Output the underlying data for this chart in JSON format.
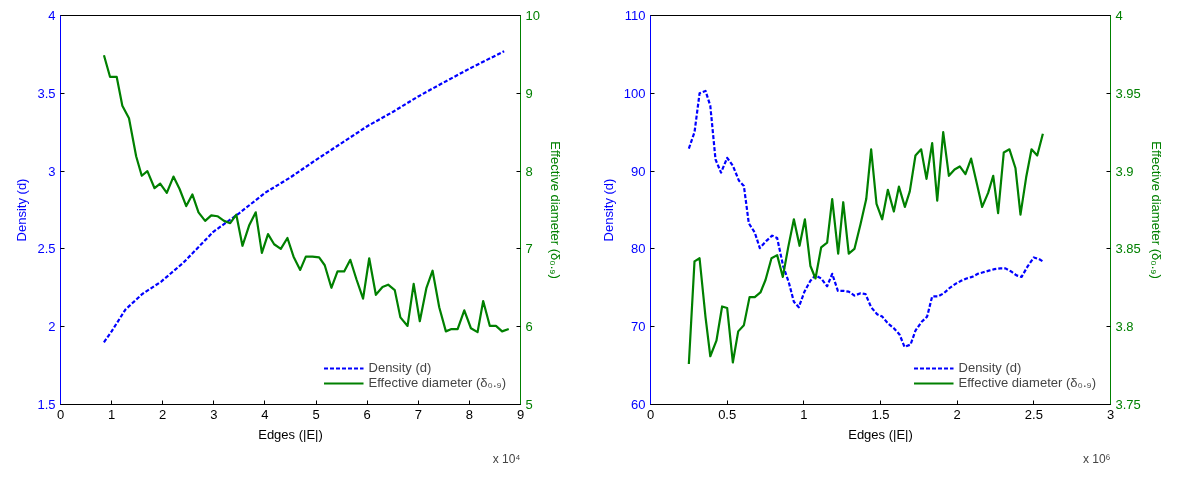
{
  "chart_data": [
    {
      "type": "line",
      "xlabel": "Edges (|E|)",
      "ylabel": "Density (d)",
      "y2label": "Effective diameter (δ₀.₉)",
      "annotations": [
        "x 10⁴"
      ],
      "xlim": [
        0,
        9
      ],
      "xticks": [
        0,
        1,
        2,
        3,
        4,
        5,
        6,
        7,
        8,
        9
      ],
      "ylim": [
        1.5,
        4
      ],
      "yticks": [
        1.5,
        2,
        2.5,
        3,
        3.5,
        4
      ],
      "y2lim": [
        5,
        10
      ],
      "y2ticks": [
        5,
        6,
        7,
        8,
        9,
        10
      ],
      "grid": false,
      "legend": "bottom right",
      "series": [
        {
          "name": "Density (d)",
          "color": "#0000ff",
          "line_style": "dashed",
          "x": [
            0.85,
            1.0,
            1.27,
            1.6,
            1.97,
            2.4,
            2.99,
            3.5,
            4.0,
            4.5,
            4.99,
            5.5,
            6.01,
            6.5,
            7.0,
            7.5,
            8.01,
            8.68
          ],
          "values": [
            1.9,
            1.97,
            2.11,
            2.21,
            2.29,
            2.41,
            2.61,
            2.73,
            2.86,
            2.96,
            3.07,
            3.18,
            3.29,
            3.38,
            3.48,
            3.57,
            3.66,
            3.77
          ]
        },
        {
          "name": "Effective diameter (δ₀.₉)",
          "color": "#008000",
          "axis": "y2",
          "line_style": "solid",
          "x": [
            0.85,
            0.97,
            1.1,
            1.21,
            1.34,
            1.48,
            1.59,
            1.7,
            1.84,
            1.95,
            2.08,
            2.21,
            2.33,
            2.46,
            2.58,
            2.7,
            2.83,
            2.95,
            3.07,
            3.2,
            3.32,
            3.44,
            3.56,
            3.69,
            3.82,
            3.94,
            4.06,
            4.18,
            4.31,
            4.44,
            4.56,
            4.69,
            4.8,
            4.93,
            5.06,
            5.17,
            5.3,
            5.42,
            5.55,
            5.67,
            5.79,
            5.92,
            6.04,
            6.17,
            6.3,
            6.41,
            6.54,
            6.65,
            6.79,
            6.91,
            7.03,
            7.16,
            7.28,
            7.41,
            7.54,
            7.65,
            7.77,
            7.9,
            8.03,
            8.16,
            8.27,
            8.4,
            8.52,
            8.64,
            8.77
          ],
          "values": [
            9.49,
            9.21,
            9.21,
            8.84,
            8.68,
            8.19,
            7.94,
            8.0,
            7.78,
            7.84,
            7.72,
            7.93,
            7.77,
            7.55,
            7.7,
            7.47,
            7.36,
            7.43,
            7.42,
            7.36,
            7.33,
            7.44,
            7.04,
            7.3,
            7.47,
            6.95,
            7.19,
            7.06,
            7.0,
            7.14,
            6.9,
            6.73,
            6.9,
            6.9,
            6.89,
            6.79,
            6.5,
            6.71,
            6.71,
            6.86,
            6.61,
            6.36,
            6.88,
            6.41,
            6.51,
            6.54,
            6.47,
            6.12,
            6.01,
            6.55,
            6.07,
            6.5,
            6.72,
            6.25,
            5.94,
            5.97,
            5.97,
            6.21,
            5.98,
            5.93,
            6.33,
            6.01,
            6.01,
            5.94,
            5.97
          ]
        }
      ]
    },
    {
      "type": "line",
      "xlabel": "Edges (|E|)",
      "ylabel": "Density (d)",
      "y2label": "Effective diameter (δ₀.₉)",
      "annotations": [
        "x 10⁶"
      ],
      "xlim": [
        0,
        3
      ],
      "xticks": [
        0,
        0.5,
        1,
        1.5,
        2,
        2.5,
        3
      ],
      "ylim": [
        60,
        110
      ],
      "yticks": [
        60,
        70,
        80,
        90,
        100,
        110
      ],
      "y2lim": [
        3.75,
        4
      ],
      "y2ticks": [
        3.75,
        3.8,
        3.85,
        3.9,
        3.95,
        4
      ],
      "grid": false,
      "legend": "bottom right",
      "series": [
        {
          "name": "Density (d)",
          "color": "#0000ff",
          "line_style": "dashed",
          "x": [
            0.25,
            0.287,
            0.32,
            0.359,
            0.39,
            0.424,
            0.46,
            0.5,
            0.537,
            0.576,
            0.609,
            0.641,
            0.68,
            0.713,
            0.754,
            0.793,
            0.826,
            0.865,
            0.902,
            0.935,
            0.967,
            1.004,
            1.043,
            1.076,
            1.113,
            1.152,
            1.185,
            1.222,
            1.26,
            1.293,
            1.33,
            1.37,
            1.402,
            1.439,
            1.478,
            1.511,
            1.55,
            1.587,
            1.624,
            1.657,
            1.696,
            1.728,
            1.767,
            1.804,
            1.837,
            1.876,
            1.913,
            1.952,
            1.989,
            2.026,
            2.061,
            2.098,
            2.135,
            2.17,
            2.207,
            2.243,
            2.283,
            2.315,
            2.352,
            2.387,
            2.42,
            2.461,
            2.5,
            2.533,
            2.559
          ],
          "values": [
            92.9,
            95.0,
            100.0,
            100.3,
            98.4,
            91.5,
            89.8,
            91.7,
            90.7,
            88.8,
            88.1,
            83.3,
            82.1,
            80.1,
            81.0,
            81.7,
            81.4,
            77.8,
            75.7,
            73.2,
            72.5,
            74.5,
            75.9,
            76.6,
            76.2,
            75.2,
            76.8,
            74.6,
            74.6,
            74.5,
            74.0,
            74.3,
            74.2,
            72.5,
            71.6,
            71.3,
            70.4,
            69.8,
            69.0,
            67.4,
            67.7,
            69.5,
            70.6,
            71.3,
            73.9,
            73.9,
            74.3,
            75.0,
            75.5,
            75.9,
            76.2,
            76.4,
            76.8,
            77.0,
            77.2,
            77.4,
            77.5,
            77.5,
            77.1,
            76.6,
            76.4,
            77.8,
            78.9,
            78.7,
            78.4
          ]
        },
        {
          "name": "Effective diameter (δ₀.₉)",
          "color": "#008000",
          "axis": "y2",
          "line_style": "solid",
          "x": [
            0.25,
            0.287,
            0.32,
            0.359,
            0.39,
            0.43,
            0.467,
            0.5,
            0.537,
            0.572,
            0.609,
            0.646,
            0.68,
            0.717,
            0.75,
            0.789,
            0.826,
            0.863,
            0.898,
            0.935,
            0.972,
            1.007,
            1.043,
            1.076,
            1.113,
            1.152,
            1.185,
            1.224,
            1.257,
            1.293,
            1.33,
            1.37,
            1.407,
            1.439,
            1.474,
            1.511,
            1.548,
            1.587,
            1.62,
            1.659,
            1.691,
            1.728,
            1.765,
            1.8,
            1.837,
            1.87,
            1.909,
            1.946,
            1.983,
            2.017,
            2.054,
            2.091,
            2.126,
            2.163,
            2.202,
            2.235,
            2.267,
            2.304,
            2.341,
            2.38,
            2.413,
            2.45,
            2.485,
            2.522,
            2.559
          ],
          "values": [
            3.776,
            3.842,
            3.844,
            3.806,
            3.781,
            3.791,
            3.813,
            3.812,
            3.777,
            3.797,
            3.801,
            3.819,
            3.819,
            3.822,
            3.83,
            3.844,
            3.846,
            3.832,
            3.851,
            3.869,
            3.852,
            3.869,
            3.839,
            3.831,
            3.851,
            3.854,
            3.882,
            3.847,
            3.88,
            3.847,
            3.85,
            3.866,
            3.882,
            3.914,
            3.879,
            3.869,
            3.888,
            3.874,
            3.89,
            3.877,
            3.887,
            3.91,
            3.914,
            3.895,
            3.918,
            3.881,
            3.925,
            3.897,
            3.901,
            3.903,
            3.898,
            3.908,
            3.893,
            3.877,
            3.886,
            3.897,
            3.873,
            3.912,
            3.914,
            3.902,
            3.872,
            3.896,
            3.914,
            3.91,
            3.924
          ]
        }
      ]
    }
  ]
}
